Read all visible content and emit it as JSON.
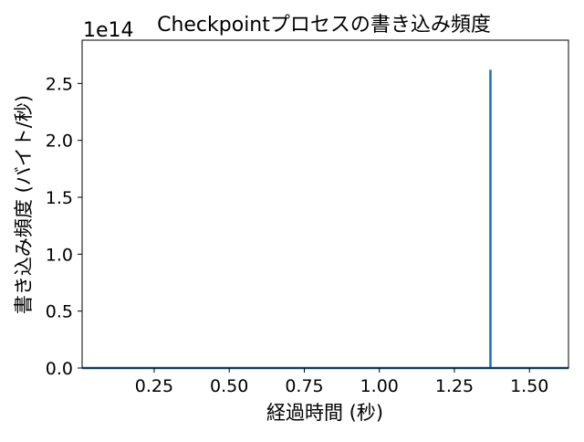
{
  "chart_data": {
    "type": "line",
    "title": "Checkpointプロセスの書き込み頻度",
    "xlabel": "経過時間 (秒)",
    "ylabel": "書き込み頻度 (バイト/秒)",
    "y_offset_text": "1e14",
    "y_scale_factor": 100000000000000,
    "xlim": [
      0.01,
      1.63
    ],
    "ylim": [
      0,
      2.88
    ],
    "x_ticks": [
      0.25,
      0.5,
      0.75,
      1.0,
      1.25,
      1.5
    ],
    "x_tick_labels": [
      "0.25",
      "0.50",
      "0.75",
      "1.00",
      "1.25",
      "1.50"
    ],
    "y_ticks": [
      0.0,
      0.5,
      1.0,
      1.5,
      2.0,
      2.5
    ],
    "y_tick_labels": [
      "0.0",
      "0.5",
      "1.0",
      "1.5",
      "2.0",
      "2.5"
    ],
    "grid": false,
    "series": [
      {
        "color": "#1f77b4",
        "x": [
          0.01,
          1.37,
          1.37,
          1.37,
          1.63
        ],
        "y": [
          0,
          0,
          2.62,
          0,
          0
        ]
      }
    ]
  }
}
